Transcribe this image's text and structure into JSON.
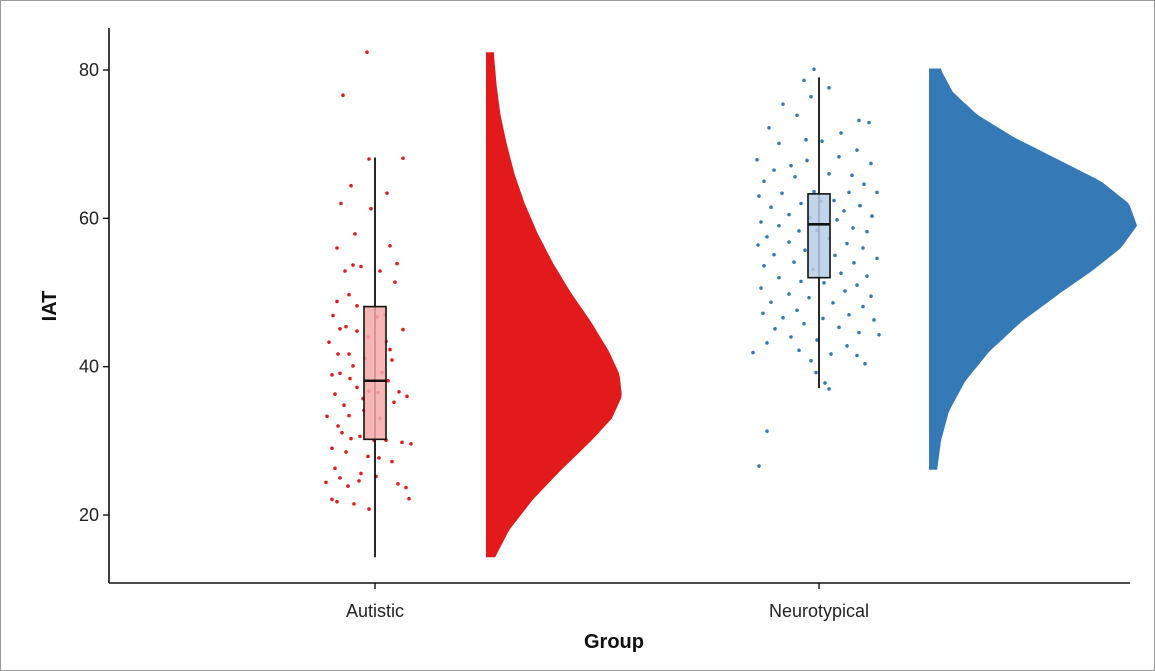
{
  "chart_data": {
    "type": "raincloud",
    "xlabel": "Group",
    "ylabel": "IAT",
    "ylim": [
      12,
      85
    ],
    "yticks": [
      20,
      40,
      60,
      80
    ],
    "grid": false,
    "legend": "none",
    "categories": [
      "Autistic",
      "Neurotypical"
    ],
    "groups": [
      {
        "name": "Autistic",
        "color": "#e31a1c",
        "box_fill": "#f4a9a8",
        "box": {
          "min": 14.3,
          "q1": 30.2,
          "median": 38.1,
          "q3": 48.1,
          "max": 68.2
        },
        "density": {
          "y_min": 14.3,
          "y_max": 82.4,
          "y": [
            14,
            18,
            22,
            26,
            30,
            33,
            36,
            39,
            42,
            46,
            50,
            54,
            58,
            62,
            66,
            70,
            74,
            78,
            82
          ],
          "d": [
            0.0,
            0.12,
            0.3,
            0.52,
            0.76,
            0.92,
            1.0,
            0.98,
            0.9,
            0.76,
            0.6,
            0.46,
            0.34,
            0.24,
            0.16,
            0.1,
            0.05,
            0.02,
            0.0
          ]
        },
        "points": [
          [
            -8,
            82.4
          ],
          [
            -32,
            76.6
          ],
          [
            -6,
            68.0
          ],
          [
            -24,
            64.4
          ],
          [
            28,
            68.1
          ],
          [
            12,
            63.4
          ],
          [
            -34,
            62.0
          ],
          [
            -4,
            61.3
          ],
          [
            15,
            56.3
          ],
          [
            -38,
            56.0
          ],
          [
            -22,
            53.7
          ],
          [
            -30,
            52.9
          ],
          [
            -14,
            53.5
          ],
          [
            22,
            53.9
          ],
          [
            5,
            52.9
          ],
          [
            -26,
            49.7
          ],
          [
            -38,
            48.8
          ],
          [
            -18,
            48.2
          ],
          [
            10,
            47.0
          ],
          [
            -42,
            46.9
          ],
          [
            -29,
            45.4
          ],
          [
            -35,
            45.1
          ],
          [
            -18,
            44.8
          ],
          [
            28,
            45.0
          ],
          [
            -7,
            44.0
          ],
          [
            11,
            43.4
          ],
          [
            -37,
            41.7
          ],
          [
            -26,
            41.7
          ],
          [
            -10,
            41.1
          ],
          [
            17,
            40.9
          ],
          [
            -22,
            40.1
          ],
          [
            7,
            39.2
          ],
          [
            -43,
            38.9
          ],
          [
            -35,
            39.1
          ],
          [
            13,
            38.1
          ],
          [
            -6,
            36.7
          ],
          [
            3,
            36.5
          ],
          [
            -18,
            37.2
          ],
          [
            -40,
            36.3
          ],
          [
            24,
            36.6
          ],
          [
            32,
            36.0
          ],
          [
            19,
            35.2
          ],
          [
            -11,
            34.1
          ],
          [
            -26,
            33.4
          ],
          [
            -48,
            33.3
          ],
          [
            -37,
            32.0
          ],
          [
            -33,
            31.1
          ],
          [
            -24,
            30.3
          ],
          [
            -15,
            30.6
          ],
          [
            -1,
            30.1
          ],
          [
            11,
            30.1
          ],
          [
            27,
            29.8
          ],
          [
            36,
            29.6
          ],
          [
            -43,
            29.0
          ],
          [
            -29,
            28.5
          ],
          [
            -7,
            27.9
          ],
          [
            4,
            27.7
          ],
          [
            -40,
            26.3
          ],
          [
            17,
            27.2
          ],
          [
            -35,
            25.0
          ],
          [
            -14,
            25.6
          ],
          [
            1,
            25.2
          ],
          [
            -49,
            24.4
          ],
          [
            -27,
            23.9
          ],
          [
            -16,
            24.6
          ],
          [
            23,
            24.2
          ],
          [
            31,
            23.7
          ],
          [
            -38,
            21.8
          ],
          [
            -21,
            21.5
          ],
          [
            -43,
            22.1
          ],
          [
            -6,
            20.8
          ],
          [
            34,
            22.2
          ],
          [
            -25,
            38.4
          ],
          [
            -12,
            35.7
          ],
          [
            5,
            33.0
          ],
          [
            -31,
            34.8
          ],
          [
            15,
            42.3
          ],
          [
            -46,
            43.3
          ],
          [
            2,
            46.7
          ],
          [
            -20,
            57.9
          ],
          [
            20,
            51.4
          ]
        ]
      },
      {
        "name": "Neurotypical",
        "color": "#3579b7",
        "box_fill": "#b7cde6",
        "box": {
          "min": 37.1,
          "q1": 52.0,
          "median": 59.2,
          "q3": 63.3,
          "max": 79.0
        },
        "density": {
          "y_min": 26.1,
          "y_max": 80.2,
          "y": [
            26,
            30,
            34,
            38,
            42,
            46,
            50,
            53,
            56,
            59,
            62,
            65,
            68,
            71,
            74,
            77,
            80
          ],
          "d": [
            0.0,
            0.02,
            0.06,
            0.14,
            0.26,
            0.42,
            0.62,
            0.78,
            0.92,
            1.0,
            0.96,
            0.82,
            0.6,
            0.38,
            0.2,
            0.08,
            0.02
          ]
        },
        "points": [
          [
            -5,
            80.1
          ],
          [
            -15,
            78.6
          ],
          [
            10,
            77.6
          ],
          [
            -8,
            76.4
          ],
          [
            -36,
            75.4
          ],
          [
            -22,
            73.9
          ],
          [
            40,
            73.2
          ],
          [
            50,
            72.9
          ],
          [
            -50,
            72.2
          ],
          [
            22,
            71.5
          ],
          [
            -13,
            70.6
          ],
          [
            -40,
            70.1
          ],
          [
            3,
            70.4
          ],
          [
            38,
            69.2
          ],
          [
            -62,
            67.9
          ],
          [
            -28,
            67.1
          ],
          [
            -12,
            67.8
          ],
          [
            20,
            68.3
          ],
          [
            52,
            67.4
          ],
          [
            -45,
            66.5
          ],
          [
            10,
            66.0
          ],
          [
            33,
            65.8
          ],
          [
            -24,
            65.6
          ],
          [
            -55,
            65.0
          ],
          [
            45,
            64.6
          ],
          [
            -5,
            63.6
          ],
          [
            -37,
            63.4
          ],
          [
            30,
            63.5
          ],
          [
            58,
            63.5
          ],
          [
            -60,
            63.0
          ],
          [
            15,
            62.4
          ],
          [
            -18,
            62.0
          ],
          [
            2,
            62.3
          ],
          [
            -48,
            61.5
          ],
          [
            41,
            61.7
          ],
          [
            25,
            61.0
          ],
          [
            -30,
            60.5
          ],
          [
            53,
            60.3
          ],
          [
            -9,
            60.1
          ],
          [
            -58,
            59.5
          ],
          [
            18,
            59.8
          ],
          [
            -40,
            59.0
          ],
          [
            34,
            58.7
          ],
          [
            -20,
            58.3
          ],
          [
            -2,
            58.4
          ],
          [
            48,
            58.2
          ],
          [
            -52,
            57.5
          ],
          [
            10,
            57.3
          ],
          [
            -30,
            56.8
          ],
          [
            28,
            56.6
          ],
          [
            -61,
            56.4
          ],
          [
            44,
            56.0
          ],
          [
            -14,
            55.7
          ],
          [
            -45,
            55.1
          ],
          [
            16,
            55.0
          ],
          [
            58,
            54.6
          ],
          [
            -25,
            54.1
          ],
          [
            35,
            54.0
          ],
          [
            -55,
            53.6
          ],
          [
            -6,
            53.1
          ],
          [
            22,
            52.6
          ],
          [
            48,
            52.2
          ],
          [
            -40,
            52.0
          ],
          [
            -18,
            51.5
          ],
          [
            5,
            51.3
          ],
          [
            38,
            51.0
          ],
          [
            -58,
            50.6
          ],
          [
            26,
            50.2
          ],
          [
            -30,
            49.8
          ],
          [
            -10,
            49.3
          ],
          [
            52,
            49.5
          ],
          [
            -48,
            48.7
          ],
          [
            14,
            48.6
          ],
          [
            44,
            48.1
          ],
          [
            -22,
            47.6
          ],
          [
            -56,
            47.2
          ],
          [
            30,
            47.0
          ],
          [
            -36,
            46.6
          ],
          [
            4,
            46.5
          ],
          [
            55,
            46.3
          ],
          [
            -15,
            45.8
          ],
          [
            20,
            45.3
          ],
          [
            -44,
            45.1
          ],
          [
            40,
            44.6
          ],
          [
            -28,
            44.0
          ],
          [
            60,
            44.3
          ],
          [
            -2,
            43.6
          ],
          [
            -52,
            43.2
          ],
          [
            28,
            42.8
          ],
          [
            -20,
            42.2
          ],
          [
            -66,
            41.9
          ],
          [
            12,
            41.7
          ],
          [
            38,
            41.5
          ],
          [
            -8,
            40.8
          ],
          [
            46,
            40.4
          ],
          [
            -3,
            39.2
          ],
          [
            6,
            37.8
          ],
          [
            10,
            37.0
          ],
          [
            -52,
            31.3
          ],
          [
            -60,
            26.6
          ]
        ]
      }
    ]
  }
}
